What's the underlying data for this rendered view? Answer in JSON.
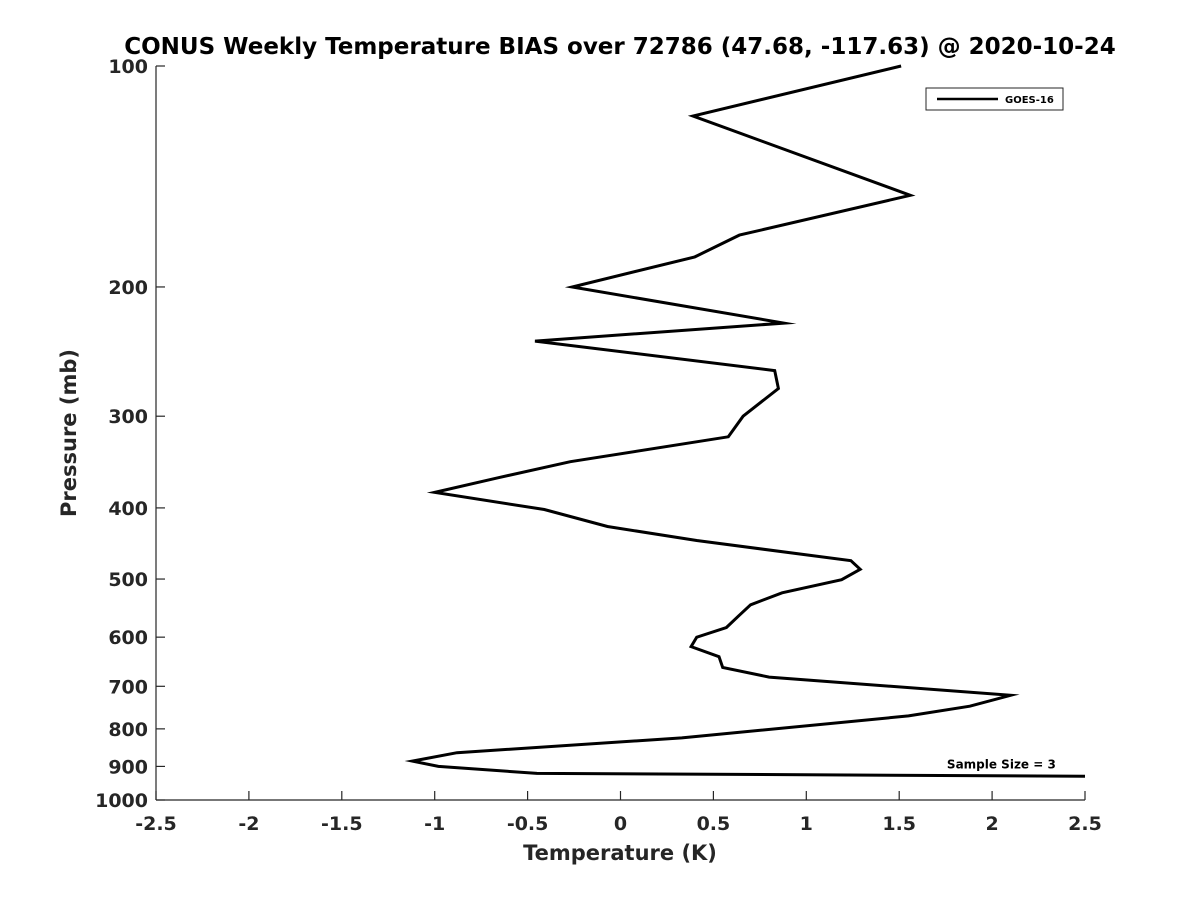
{
  "chart_data": {
    "type": "line",
    "title": "CONUS Weekly Temperature BIAS over 72786 (47.68, -117.63) @ 2020-10-24",
    "xlabel": "Temperature (K)",
    "ylabel": "Pressure (mb)",
    "xlim": [
      -2.5,
      2.5
    ],
    "ylim": [
      1000,
      100
    ],
    "yscale": "log",
    "grid": false,
    "legend_position": "top-right",
    "x_ticks": [
      -2.5,
      -2,
      -1.5,
      -1,
      -0.5,
      0,
      0.5,
      1,
      1.5,
      2,
      2.5
    ],
    "x_tick_labels": [
      "-2.5",
      "-2",
      "-1.5",
      "-1",
      "-0.5",
      "0",
      "0.5",
      "1",
      "1.5",
      "2",
      "2.5"
    ],
    "y_ticks": [
      100,
      200,
      300,
      400,
      500,
      600,
      700,
      800,
      900,
      1000
    ],
    "y_tick_labels": [
      "100",
      "200",
      "300",
      "400",
      "500",
      "600",
      "700",
      "800",
      "900",
      "1000"
    ],
    "series": [
      {
        "name": "GOES-16",
        "color": "#000000",
        "points": [
          [
            1.51,
            100
          ],
          [
            0.39,
            117
          ],
          [
            1.56,
            150
          ],
          [
            0.64,
            170
          ],
          [
            0.4,
            182
          ],
          [
            -0.26,
            200
          ],
          [
            0.88,
            224
          ],
          [
            -0.46,
            237
          ],
          [
            0.83,
            260
          ],
          [
            0.85,
            275
          ],
          [
            0.66,
            300
          ],
          [
            0.58,
            320
          ],
          [
            -0.27,
            346
          ],
          [
            -0.66,
            364
          ],
          [
            -1.0,
            381
          ],
          [
            -0.41,
            402
          ],
          [
            -0.07,
            424
          ],
          [
            0.41,
            443
          ],
          [
            1.24,
            472
          ],
          [
            1.29,
            485
          ],
          [
            1.19,
            501
          ],
          [
            0.87,
            522
          ],
          [
            0.7,
            542
          ],
          [
            0.64,
            560
          ],
          [
            0.57,
            582
          ],
          [
            0.41,
            600
          ],
          [
            0.38,
            618
          ],
          [
            0.53,
            638
          ],
          [
            0.55,
            660
          ],
          [
            0.8,
            680
          ],
          [
            2.1,
            720
          ],
          [
            1.88,
            745
          ],
          [
            1.55,
            768
          ],
          [
            0.33,
            823
          ],
          [
            -0.88,
            862
          ],
          [
            -1.12,
            885
          ],
          [
            -0.98,
            900
          ],
          [
            -0.45,
            920
          ],
          [
            2.5,
            928
          ]
        ]
      }
    ],
    "annotations": [
      {
        "text": "Sample Size = 3",
        "x": 2.05,
        "y": 895
      }
    ]
  }
}
